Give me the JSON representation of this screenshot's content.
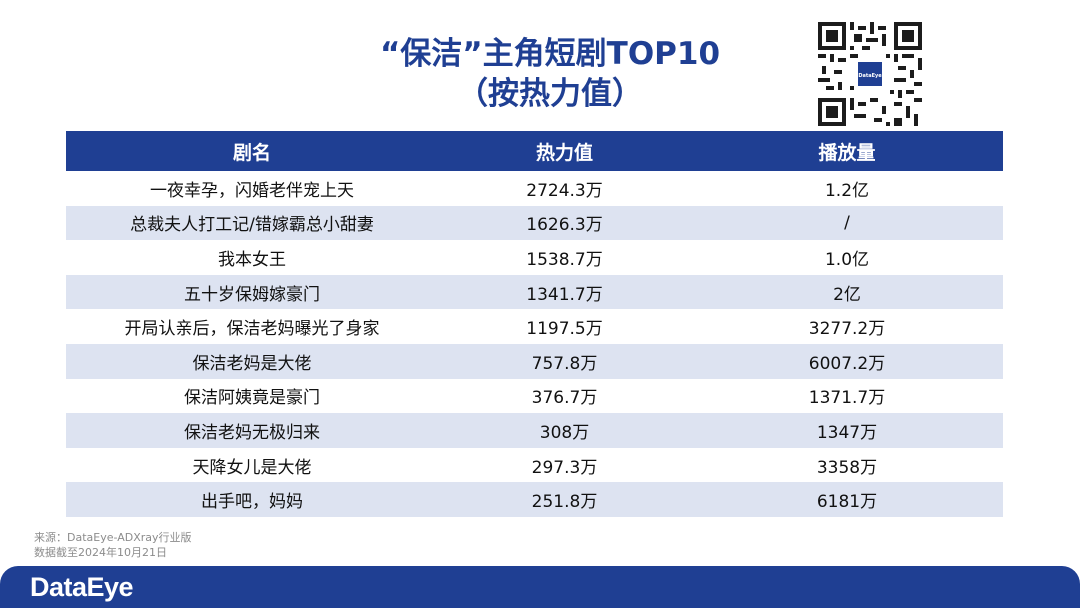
{
  "title": {
    "line1": "“保洁”主角短剧TOP10",
    "line2": "（按热力值）"
  },
  "qr": {
    "badge_text": "DataEye"
  },
  "table": {
    "headers": [
      "剧名",
      "热力值",
      "播放量"
    ],
    "rows": [
      [
        "一夜幸孕，闪婚老伴宠上天",
        "2724.3万",
        "1.2亿"
      ],
      [
        "总裁夫人打工记/错嫁霸总小甜妻",
        "1626.3万",
        "/"
      ],
      [
        "我本女王",
        "1538.7万",
        "1.0亿"
      ],
      [
        "五十岁保姆嫁豪门",
        "1341.7万",
        "2亿"
      ],
      [
        "开局认亲后，保洁老妈曝光了身家",
        "1197.5万",
        "3277.2万"
      ],
      [
        "保洁老妈是大佬",
        "757.8万",
        "6007.2万"
      ],
      [
        "保洁阿姨竟是豪门",
        "376.7万",
        "1371.7万"
      ],
      [
        "保洁老妈无极归来",
        "308万",
        "1347万"
      ],
      [
        "天降女儿是大佬",
        "297.3万",
        "3358万"
      ],
      [
        "出手吧，妈妈",
        "251.8万",
        "6181万"
      ]
    ]
  },
  "source": {
    "line1": "来源：DataEye-ADXray行业版",
    "line2": "数据截至2024年10月21日"
  },
  "footer": {
    "logo_text": "DataEye"
  },
  "colors": {
    "brand_blue": "#1f3f93",
    "stripe": "#dde3f1"
  }
}
